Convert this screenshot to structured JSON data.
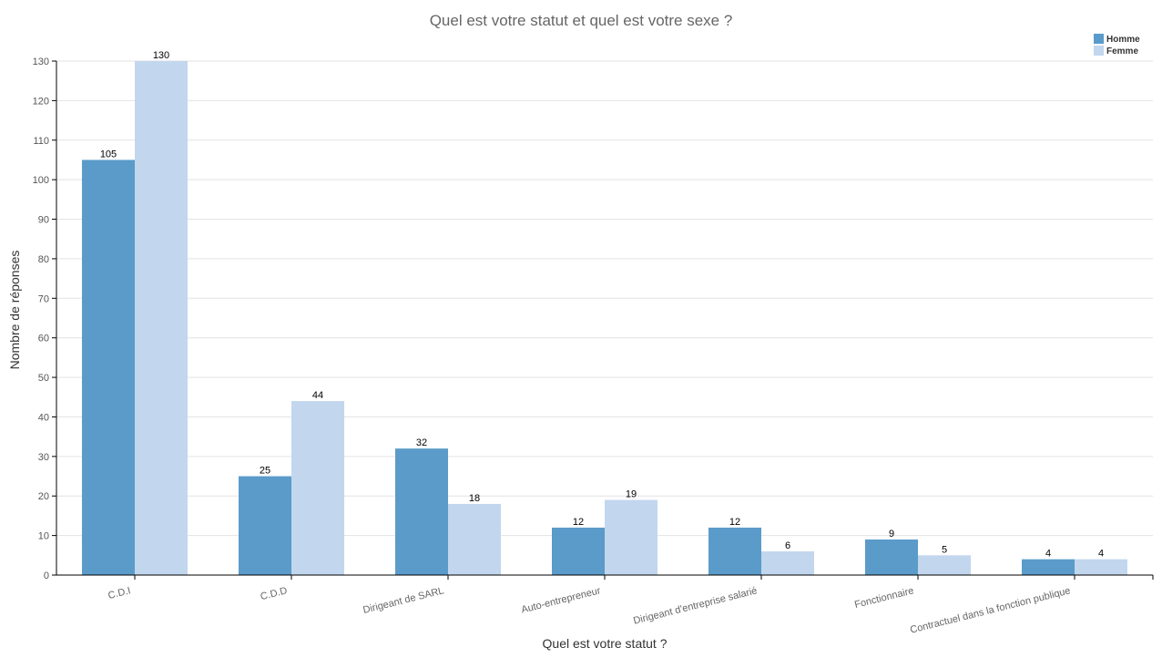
{
  "chart_data": {
    "type": "bar",
    "title": "Quel est votre statut et quel est votre sexe ?",
    "xlabel": "Quel est votre statut ?",
    "ylabel": "Nombre de réponses",
    "ylim": [
      0,
      130
    ],
    "yticks": [
      0,
      10,
      20,
      30,
      40,
      50,
      60,
      70,
      80,
      90,
      100,
      110,
      120,
      130
    ],
    "grid": true,
    "legend_position": "top-right",
    "categories": [
      "C.D.I",
      "C.D.D",
      "Dirigeant de SARL",
      "Auto-entrepreneur",
      "Dirigeant d'entreprise salarié",
      "Fonctionnaire",
      "Contractuel dans la fonction publique"
    ],
    "series": [
      {
        "name": "Homme",
        "color": "#5a9bc9",
        "values": [
          105,
          25,
          32,
          12,
          12,
          9,
          4
        ]
      },
      {
        "name": "Femme",
        "color": "#c2d6ee",
        "values": [
          130,
          44,
          18,
          19,
          6,
          5,
          4
        ]
      }
    ]
  }
}
